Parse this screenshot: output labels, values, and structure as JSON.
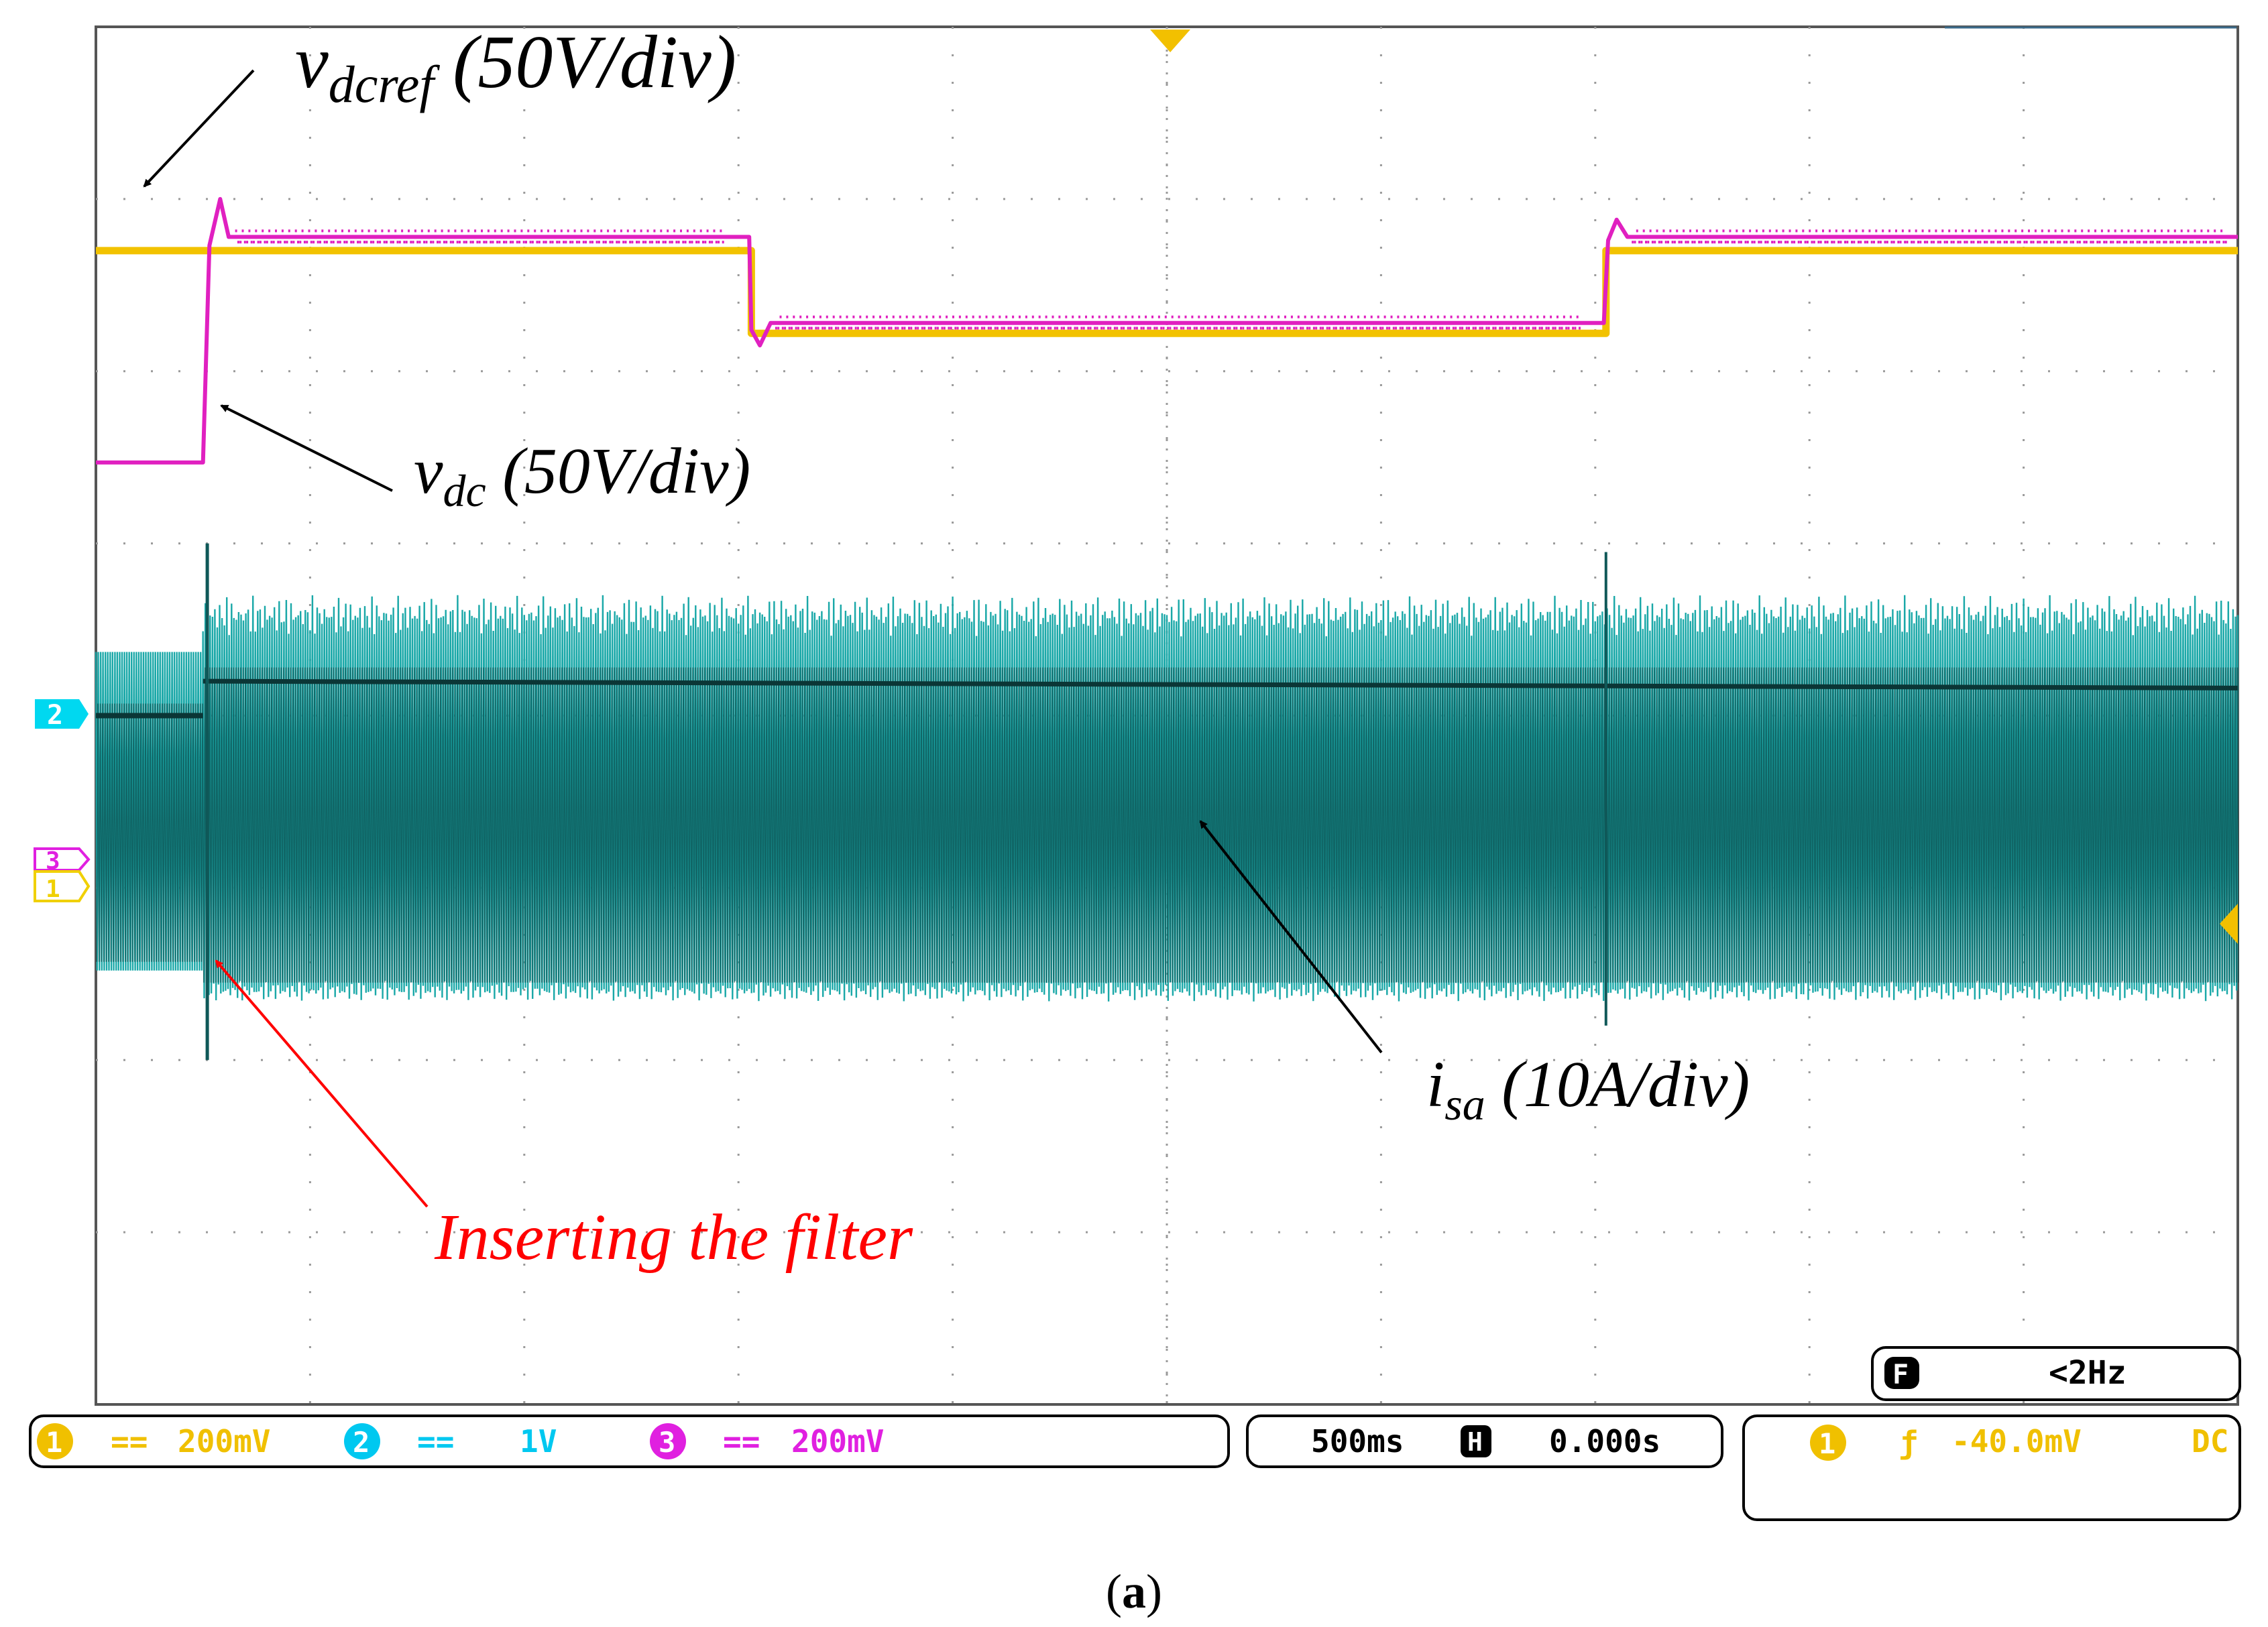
{
  "chart_data": {
    "type": "line",
    "instrument": "oscilloscope",
    "grid": true,
    "x_divisions": 10,
    "y_divisions": 8,
    "annotations": [
      {
        "id": "vdcref",
        "symbol": "v",
        "subscript": "dcref",
        "suffix": " (50V/div)"
      },
      {
        "id": "vdc",
        "symbol": "v",
        "subscript": "dc",
        "suffix": " (50V/div)"
      },
      {
        "id": "isa",
        "symbol": "i",
        "subscript": "sa",
        "suffix": " (10A/div)"
      },
      {
        "id": "filter",
        "text": "Inserting the filter",
        "color": "#ff0000"
      }
    ],
    "series": [
      {
        "id": "ch1",
        "color": "#f2c200",
        "points": [
          [
            0,
            6.7
          ],
          [
            0.5,
            6.7
          ],
          [
            0.5,
            6.7
          ],
          [
            3.06,
            6.7
          ],
          [
            3.06,
            6.22
          ],
          [
            7.05,
            6.22
          ],
          [
            7.05,
            6.7
          ],
          [
            10,
            6.7
          ]
        ]
      },
      {
        "id": "ch3",
        "color": "#e020c0",
        "points": [
          [
            0,
            5.47
          ],
          [
            0.5,
            5.47
          ],
          [
            0.53,
            6.73
          ],
          [
            0.58,
            7.0
          ],
          [
            0.62,
            6.78
          ],
          [
            1.0,
            6.78
          ],
          [
            3.05,
            6.78
          ],
          [
            3.06,
            6.24
          ],
          [
            3.1,
            6.15
          ],
          [
            3.15,
            6.28
          ],
          [
            7.04,
            6.28
          ],
          [
            7.06,
            6.76
          ],
          [
            7.1,
            6.88
          ],
          [
            7.15,
            6.78
          ],
          [
            10,
            6.78
          ]
        ]
      },
      {
        "id": "ch2",
        "color": "#1aa8a8",
        "envelope": {
          "pre_upper": 4.37,
          "pre_lower": 2.52,
          "upper": 4.58,
          "lower": 2.4,
          "center_pre": 4.0,
          "center_post": 4.2
        }
      }
    ],
    "markers": {
      "left": [
        "2",
        "3",
        "1"
      ],
      "left_colors": [
        "#00d8f0",
        "#e020e0",
        "#f0d000"
      ]
    },
    "status_bar": {
      "ch1": {
        "num": "1",
        "coupling": "==",
        "scale": "200mV",
        "color": "#f0c000"
      },
      "ch2": {
        "num": "2",
        "coupling": "==",
        "scale": "1V",
        "color": "#00c8f0"
      },
      "ch3": {
        "num": "3",
        "coupling": "==",
        "scale": "200mV",
        "color": "#e020e0"
      },
      "timebase": {
        "value": "500ms",
        "badge": "H",
        "position": "0.000s"
      },
      "trigger": {
        "source": "1",
        "slope": "ƒ",
        "level": "-40.0mV",
        "coupling": "DC"
      },
      "filter": {
        "badge": "F",
        "value": "<2Hz"
      }
    }
  },
  "caption": {
    "open": "(",
    "letter": "a",
    "close": ")"
  }
}
